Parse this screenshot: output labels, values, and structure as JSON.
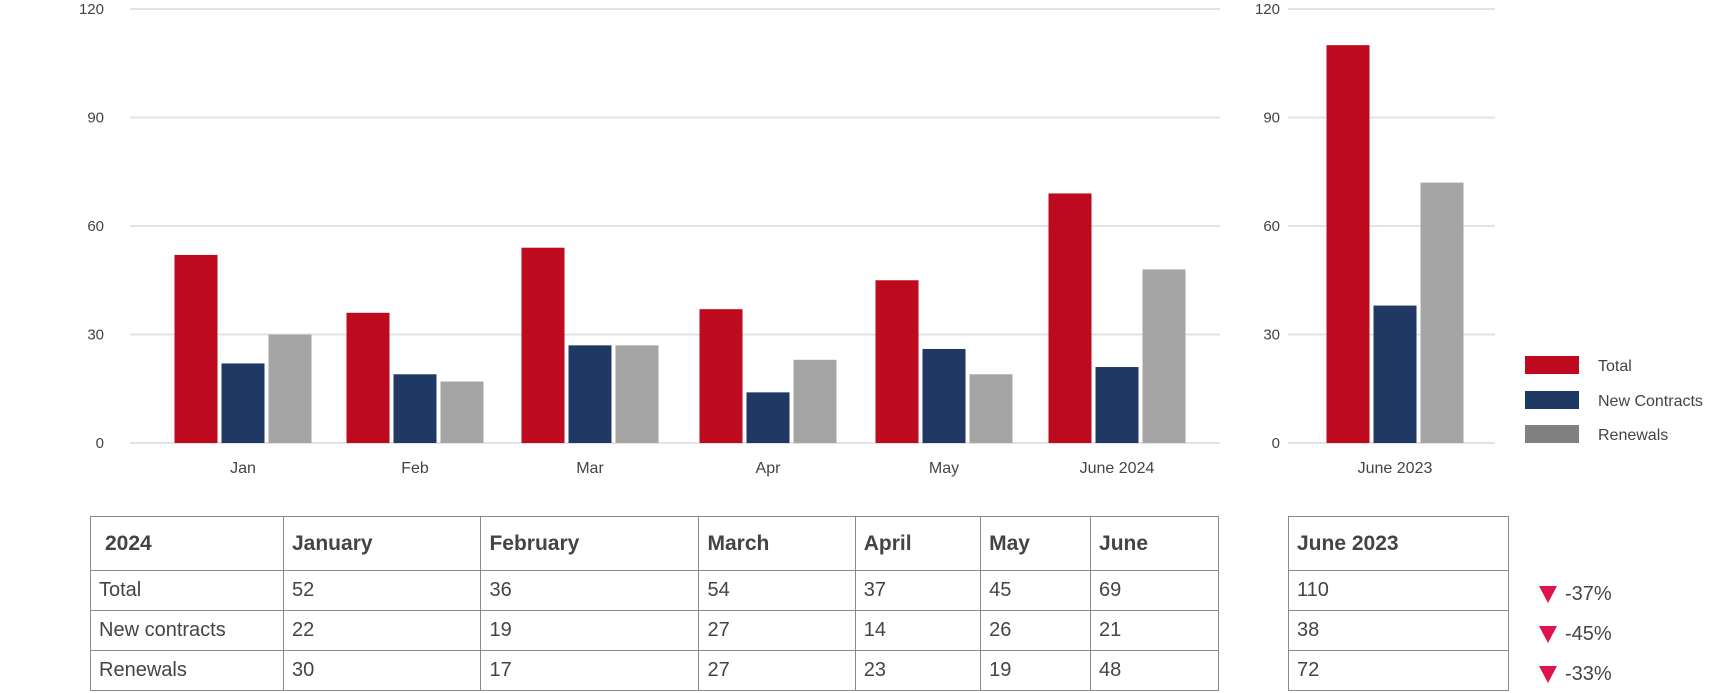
{
  "chart_data": [
    {
      "type": "bar",
      "categories": [
        "Jan",
        "Feb",
        "Mar",
        "Apr",
        "May",
        "June 2024"
      ],
      "series": [
        {
          "name": "Total",
          "values": [
            52,
            36,
            54,
            37,
            45,
            69
          ]
        },
        {
          "name": "New Contracts",
          "values": [
            22,
            19,
            27,
            14,
            26,
            21
          ]
        },
        {
          "name": "Renewals",
          "values": [
            30,
            17,
            27,
            23,
            19,
            48
          ]
        }
      ],
      "ylim": [
        0,
        120
      ],
      "yticks": [
        0,
        30,
        60,
        90,
        120
      ],
      "grid": true
    },
    {
      "type": "bar",
      "categories": [
        "June 2023"
      ],
      "series": [
        {
          "name": "Total",
          "values": [
            110
          ]
        },
        {
          "name": "New Contracts",
          "values": [
            38
          ]
        },
        {
          "name": "Renewals",
          "values": [
            72
          ]
        }
      ],
      "ylim": [
        0,
        120
      ],
      "yticks": [
        0,
        30,
        60,
        90,
        120
      ],
      "grid": true,
      "legend": "right"
    }
  ],
  "colors": {
    "Total": "#BE0A1E",
    "New Contracts": "#1F3864",
    "Renewals": "#A5A5A5",
    "legend_renewals": "#808080",
    "decrease": "#E0134F"
  },
  "legend": [
    "Total",
    "New Contracts",
    "Renewals"
  ],
  "table2024": {
    "header": [
      "2024",
      "January",
      "February",
      "March",
      "April",
      "May",
      "June"
    ],
    "rows": [
      [
        "Total",
        "52",
        "36",
        "54",
        "37",
        "45",
        "69"
      ],
      [
        "New contracts",
        "22",
        "19",
        "27",
        "14",
        "26",
        "21"
      ],
      [
        "Renewals",
        "30",
        "17",
        "27",
        "23",
        "19",
        "48"
      ]
    ]
  },
  "table2023": {
    "header": "June 2023",
    "rows": [
      "110",
      "38",
      "72"
    ]
  },
  "changes": [
    "-37%",
    "-45%",
    "-33%"
  ]
}
